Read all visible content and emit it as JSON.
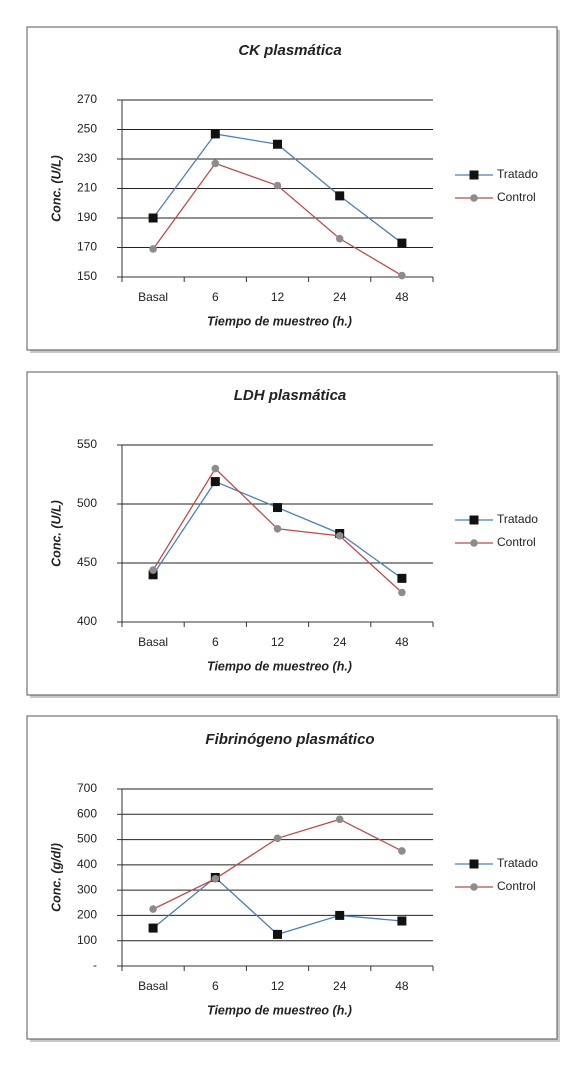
{
  "chart_data": [
    {
      "type": "line",
      "title": "CK plasmática",
      "x_label": "Tiempo de muestreo (h.)",
      "y_label": "Conc. (U/L)",
      "categories": [
        "Basal",
        "6",
        "12",
        "24",
        "48"
      ],
      "series": [
        {
          "name": "Tratado",
          "color": "#4a7ebb",
          "marker_color": "#111111",
          "marker": "square",
          "values": [
            190,
            247,
            240,
            205,
            173
          ]
        },
        {
          "name": "Control",
          "color": "#be4b48",
          "marker_color": "#8c8c8c",
          "marker": "circle",
          "values": [
            169,
            227,
            212,
            176,
            151
          ]
        }
      ],
      "ylim": [
        150,
        270
      ],
      "yticks": [
        150,
        170,
        190,
        210,
        230,
        250,
        270
      ],
      "grid": true,
      "legend": "right"
    },
    {
      "type": "line",
      "title": "LDH plasmática",
      "x_label": "Tiempo de muestreo (h.)",
      "y_label": "Conc. (U/L)",
      "categories": [
        "Basal",
        "6",
        "12",
        "24",
        "48"
      ],
      "series": [
        {
          "name": "Tratado",
          "color": "#4a7ebb",
          "marker_color": "#111111",
          "marker": "square",
          "values": [
            440,
            519,
            497,
            475,
            437
          ]
        },
        {
          "name": "Control",
          "color": "#be4b48",
          "marker_color": "#8c8c8c",
          "marker": "circle",
          "values": [
            444,
            530,
            479,
            473,
            425
          ]
        }
      ],
      "ylim": [
        400,
        550
      ],
      "yticks": [
        400,
        450,
        500,
        550
      ],
      "grid": true,
      "legend": "right"
    },
    {
      "type": "line",
      "title": "Fibrinógeno plasmático",
      "x_label": "Tiempo de muestreo (h.)",
      "y_label": "Conc. (g/dl)",
      "categories": [
        "Basal",
        "6",
        "12",
        "24",
        "48"
      ],
      "series": [
        {
          "name": "Tratado",
          "color": "#4a7ebb",
          "marker_color": "#111111",
          "marker": "square",
          "values": [
            150,
            350,
            125,
            200,
            178
          ]
        },
        {
          "name": "Control",
          "color": "#be4b48",
          "marker_color": "#8c8c8c",
          "marker": "circle",
          "values": [
            225,
            345,
            505,
            580,
            455
          ]
        }
      ],
      "ylim": [
        0,
        700
      ],
      "yticks": [
        {
          "value": 0,
          "label": "-"
        },
        100,
        200,
        300,
        400,
        500,
        600,
        700
      ],
      "grid": true,
      "legend": "right"
    }
  ]
}
